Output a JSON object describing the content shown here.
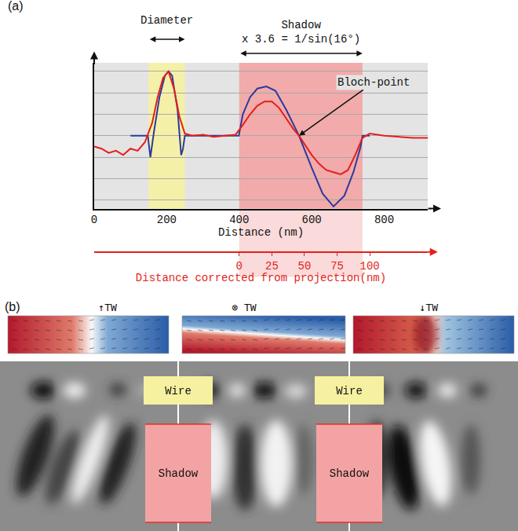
{
  "chart_data": {
    "type": "line",
    "panel_label": "(a)",
    "x_label": "Distance (nm)",
    "xlim": [
      0,
      920
    ],
    "xticks": [
      0,
      200,
      400,
      600,
      800
    ],
    "ylim": [
      -3.4,
      3.4
    ],
    "yticks": [
      -3,
      -2,
      -1,
      0,
      1,
      2,
      3
    ],
    "tick_labels": "x",
    "grid": true,
    "series": [
      {
        "color": "#2b3a9e",
        "x": [
          100,
          148,
          150,
          155,
          165,
          180,
          195,
          205,
          215,
          230,
          240,
          245,
          250,
          300,
          399,
          400,
          410,
          430,
          450,
          475,
          500,
          530,
          565,
          600,
          630,
          660,
          690,
          715,
          735,
          740,
          760
        ],
        "values": [
          0,
          0,
          -0.3,
          -1.0,
          0.2,
          1.8,
          2.8,
          3.0,
          2.8,
          1.2,
          -0.9,
          -0.6,
          0,
          0,
          0,
          0.1,
          1.0,
          1.8,
          2.2,
          2.3,
          2.1,
          1.2,
          0,
          -1.5,
          -2.7,
          -3.3,
          -2.8,
          -1.7,
          -0.5,
          0,
          0
        ]
      },
      {
        "color": "#e41f1a",
        "x": [
          0,
          20,
          40,
          60,
          80,
          100,
          120,
          140,
          160,
          175,
          190,
          205,
          220,
          235,
          250,
          270,
          300,
          330,
          360,
          390,
          410,
          430,
          450,
          470,
          490,
          510,
          530,
          550,
          565,
          580,
          600,
          620,
          640,
          660,
          680,
          700,
          720,
          740,
          760,
          800,
          840,
          880,
          920
        ],
        "values": [
          -0.5,
          -0.6,
          -0.8,
          -0.7,
          -0.9,
          -0.6,
          -0.7,
          -0.3,
          0.6,
          1.8,
          2.7,
          3.0,
          2.2,
          0.9,
          0.1,
          0,
          0.05,
          -0.05,
          0,
          0.05,
          0.5,
          1.0,
          1.4,
          1.6,
          1.6,
          1.3,
          0.8,
          0.3,
          0,
          -0.4,
          -0.9,
          -1.3,
          -1.6,
          -1.7,
          -1.8,
          -1.6,
          -0.9,
          -0.1,
          0.1,
          0,
          -0.05,
          -0.1,
          -0.1
        ]
      }
    ],
    "bands": [
      {
        "label": "Diameter",
        "x": [
          150,
          250
        ],
        "color": "#f6f1a0"
      },
      {
        "label": "Shadow",
        "sublabel": "x 3.6 = 1/sin(16°)",
        "x": [
          400,
          740
        ],
        "color": "#f3a3a3"
      }
    ],
    "secondary_axis": {
      "label": "Distance corrected from projection(nm)",
      "x2lim": [
        -111.1,
        144.4
      ],
      "x2ticks": [
        0,
        25,
        50,
        75,
        100
      ],
      "color": "#e41f1a"
    },
    "annotation": {
      "text": "Bloch-point",
      "x": 565,
      "y": 0
    }
  },
  "panel_b": {
    "label": "(b)",
    "columns": [
      {
        "tw_label": "↑TW"
      },
      {
        "tw_label": "⊗ TW"
      },
      {
        "tw_label": "↓TW"
      }
    ],
    "gap_labels": {
      "wire": "Wire",
      "shadow": "Shadow"
    }
  }
}
